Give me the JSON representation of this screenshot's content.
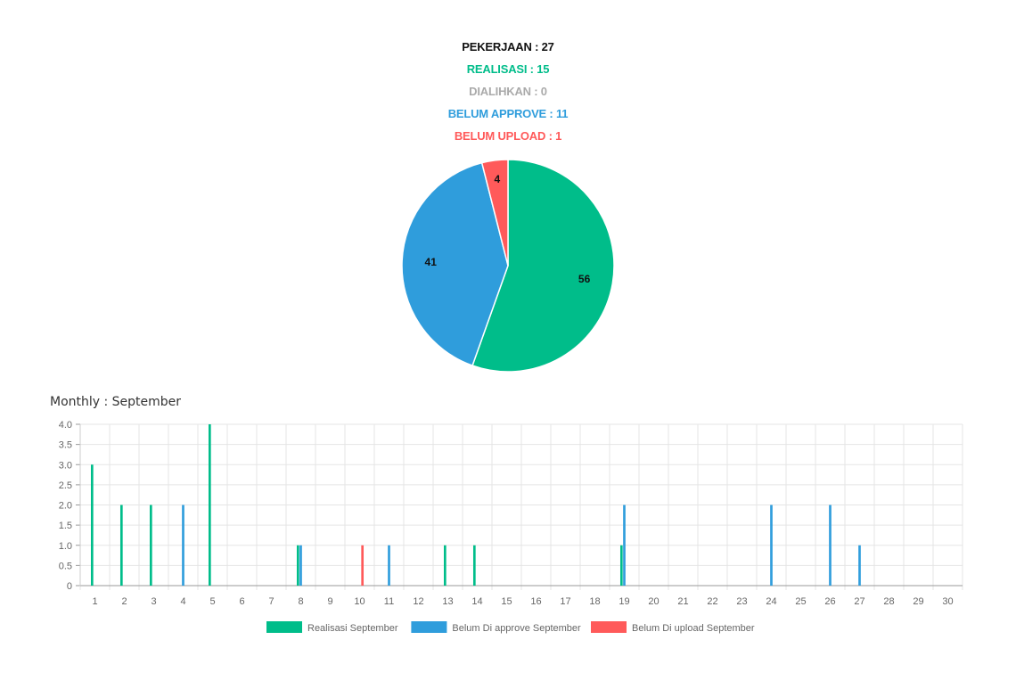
{
  "summary": {
    "pekerjaan": "PEKERJAAN : 27",
    "realisasi": "REALISASI : 15",
    "dialihkan": "DIALIHKAN : 0",
    "belum_approve": "BELUM APPROVE : 11",
    "belum_upload": "BELUM UPLOAD : 1"
  },
  "monthly_title": "Monthly : September",
  "colors": {
    "pekerjaan": "#111111",
    "realisasi": "#00bd8a",
    "dialihkan": "#aaaaaa",
    "belum_approve": "#2f9ddc",
    "belum_upload": "#ff5a5a"
  },
  "chart_data": [
    {
      "type": "pie",
      "slices": [
        {
          "label": "Realisasi",
          "value": 56,
          "color": "#00bd8a"
        },
        {
          "label": "Belum Approve",
          "value": 41,
          "color": "#2f9ddc"
        },
        {
          "label": "Belum Upload",
          "value": 4,
          "color": "#ff5a5a"
        }
      ],
      "data_labels": [
        "56",
        "41",
        "4"
      ]
    },
    {
      "type": "bar",
      "title": "",
      "categories": [
        "1",
        "2",
        "3",
        "4",
        "5",
        "6",
        "7",
        "8",
        "9",
        "10",
        "11",
        "12",
        "13",
        "14",
        "15",
        "16",
        "17",
        "18",
        "19",
        "20",
        "21",
        "22",
        "23",
        "24",
        "25",
        "26",
        "27",
        "28",
        "29",
        "30"
      ],
      "series": [
        {
          "name": "Realisasi September",
          "color": "#00bd8a",
          "values": [
            3,
            2,
            2,
            0,
            4,
            0,
            0,
            1,
            0,
            0,
            0,
            0,
            1,
            1,
            0,
            0,
            0,
            0,
            1,
            0,
            0,
            0,
            0,
            0,
            0,
            0,
            0,
            0,
            0,
            0
          ]
        },
        {
          "name": "Belum Di approve September",
          "color": "#2f9ddc",
          "values": [
            0,
            0,
            0,
            2,
            0,
            0,
            0,
            1,
            0,
            0,
            1,
            0,
            0,
            0,
            0,
            0,
            0,
            0,
            2,
            0,
            0,
            0,
            0,
            2,
            0,
            2,
            1,
            0,
            0,
            0
          ]
        },
        {
          "name": "Belum Di upload September",
          "color": "#ff5a5a",
          "values": [
            0,
            0,
            0,
            0,
            0,
            0,
            0,
            0,
            0,
            1,
            0,
            0,
            0,
            0,
            0,
            0,
            0,
            0,
            0,
            0,
            0,
            0,
            0,
            0,
            0,
            0,
            0,
            0,
            0,
            0
          ]
        }
      ],
      "ylim": [
        0,
        4
      ],
      "yticks": [
        "0",
        "0.5",
        "1.0",
        "1.5",
        "2.0",
        "2.5",
        "3.0",
        "3.5",
        "4.0"
      ],
      "grid": true,
      "legend_position": "bottom"
    }
  ]
}
